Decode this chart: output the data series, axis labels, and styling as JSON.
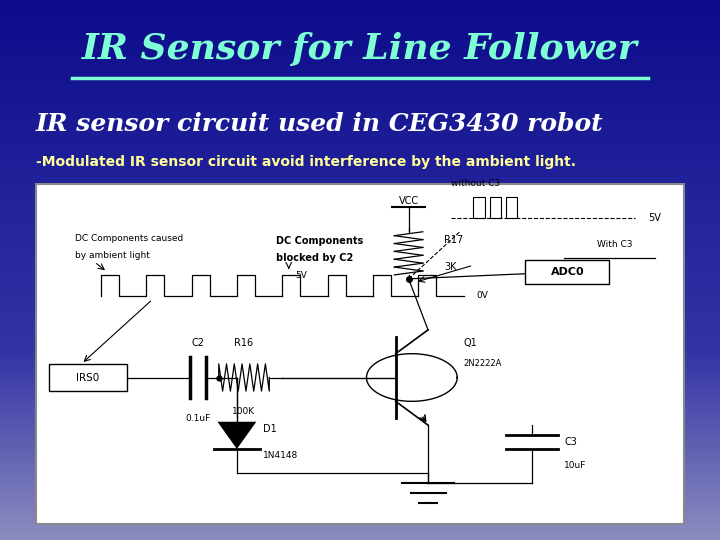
{
  "title": "IR Sensor for Line Follower",
  "subtitle": "IR sensor circuit used in CEG3430 robot",
  "description": "-Modulated IR sensor circuit avoid interference by the ambient light.",
  "title_color": "#7FFFD4",
  "subtitle_color": "#FFFFFF",
  "desc_color": "#FFFF99",
  "bg_gradient_top": "#0000CC",
  "bg_gradient_bottom": "#6699CC",
  "image_box_color": "#FFFFFF",
  "figsize": [
    7.2,
    5.4
  ],
  "dpi": 100
}
